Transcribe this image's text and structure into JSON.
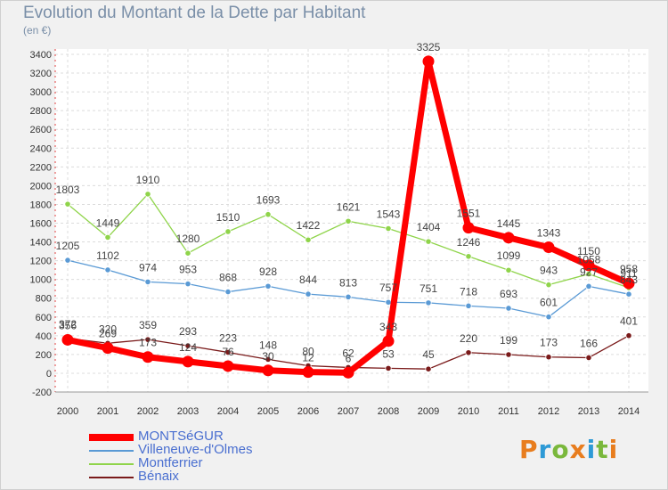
{
  "chart_data": {
    "type": "line",
    "title": "Evolution du Montant de la Dette par Habitant",
    "subtitle": "(en €)",
    "x": [
      "2000",
      "2001",
      "2002",
      "2003",
      "2004",
      "2005",
      "2006",
      "2007",
      "2008",
      "2009",
      "2010",
      "2011",
      "2012",
      "2013",
      "2014"
    ],
    "ylim": [
      -200,
      3400
    ],
    "yticks": [
      -200,
      0,
      200,
      400,
      600,
      800,
      1000,
      1200,
      1400,
      1600,
      1800,
      2000,
      2200,
      2400,
      2600,
      2800,
      3000,
      3200,
      3400
    ],
    "grid": true,
    "legend": "bottom-left",
    "series": [
      {
        "name": "MONTSéGUR",
        "color": "#ff0000",
        "values": [
          356,
          269,
          173,
          124,
          76,
          30,
          12,
          6,
          343,
          3325,
          1551,
          1445,
          1343,
          1150,
          958
        ]
      },
      {
        "name": "Villeneuve-d'Olmes",
        "color": "#5a9ad5",
        "values": [
          1205,
          1102,
          974,
          953,
          868,
          928,
          844,
          813,
          757,
          751,
          718,
          693,
          601,
          927,
          843
        ]
      },
      {
        "name": "Montferrier",
        "color": "#8fd44a",
        "values": [
          1803,
          1449,
          1910,
          1280,
          1510,
          1693,
          1422,
          1621,
          1543,
          1404,
          1246,
          1099,
          943,
          1058,
          911
        ]
      },
      {
        "name": "Bénaix",
        "color": "#7a1a1a",
        "values": [
          372,
          320,
          359,
          293,
          223,
          148,
          80,
          62,
          53,
          45,
          220,
          199,
          173,
          166,
          401
        ]
      }
    ],
    "data_labels": {
      "MONTSéGUR": [
        "356",
        "269",
        "173",
        "124",
        "76",
        "30",
        "12",
        "6",
        "343",
        "3325",
        "1551",
        "1445",
        "1343",
        "1150",
        "958"
      ],
      "Villeneuve-d'Olmes": [
        "1205",
        "1102",
        "974",
        "953",
        "868",
        "928",
        "844",
        "813",
        "757",
        "751",
        "718",
        "693",
        "601",
        "927",
        "843"
      ],
      "Montferrier": [
        "1803",
        "1449",
        "1910",
        "1280",
        "1510",
        "1693",
        "1422",
        "1621",
        "1543",
        "1404",
        "1246",
        "1099",
        "943",
        "1058",
        "911"
      ],
      "Bénaix": [
        "372",
        "320",
        "359",
        "293",
        "223",
        "148",
        "80",
        "62",
        "53",
        "45",
        "220",
        "199",
        "173",
        "166",
        "401"
      ]
    }
  },
  "logo": {
    "text": "Proxiti",
    "colors": [
      "#e87d1e",
      "#2e9ad6",
      "#7ab83c",
      "#e87d1e",
      "#2e9ad6",
      "#7ab83c",
      "#e87d1e"
    ]
  }
}
